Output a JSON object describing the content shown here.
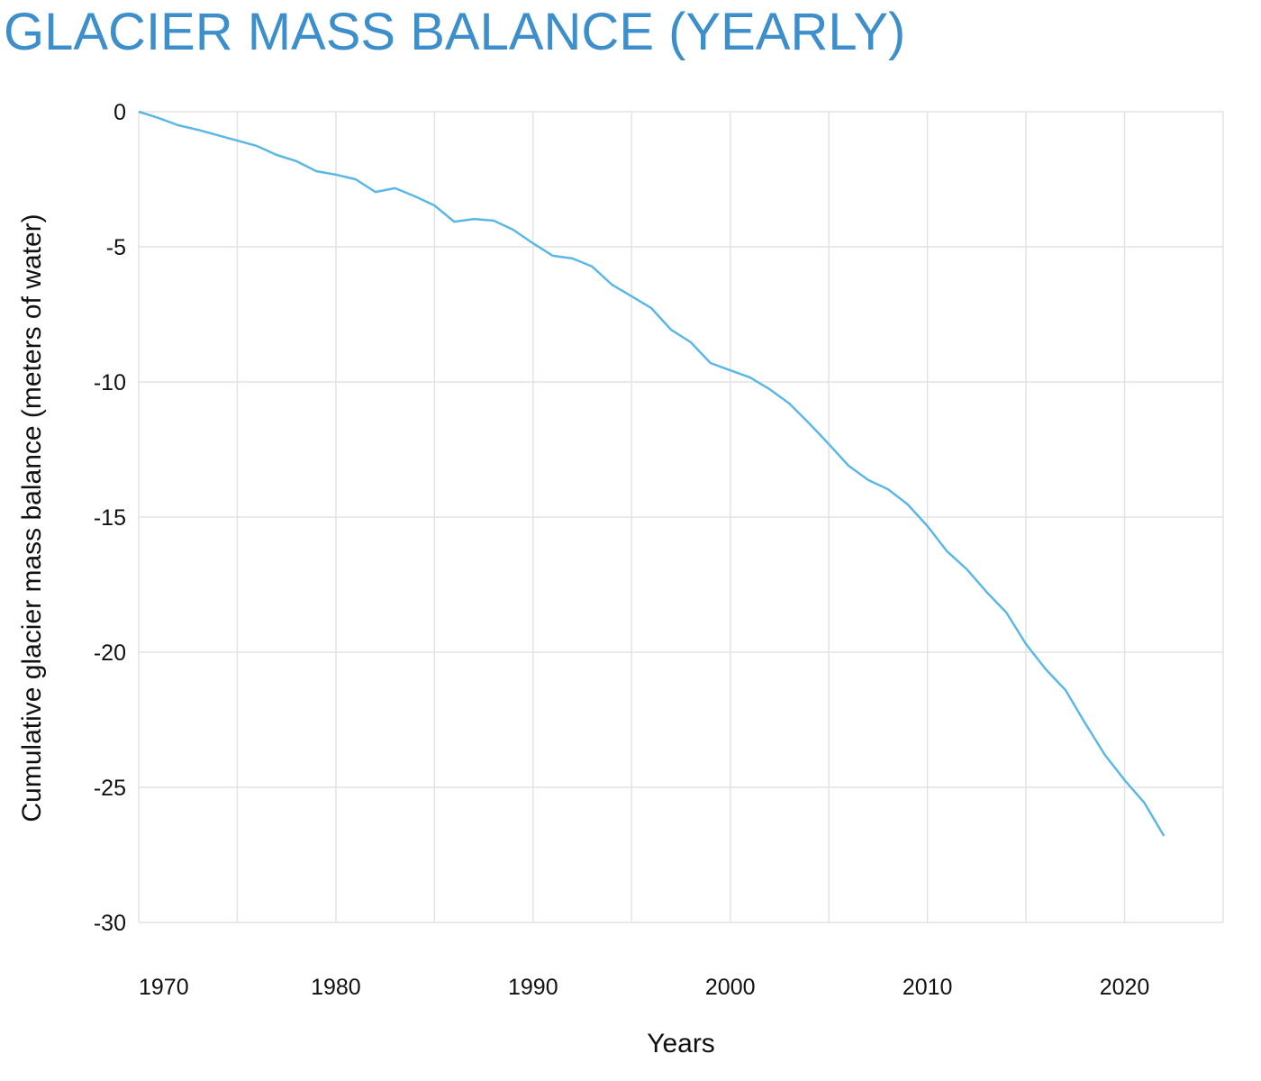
{
  "chart_data": {
    "type": "line",
    "title": "GLACIER MASS BALANCE (YEARLY)",
    "xlabel": "Years",
    "ylabel": "Cumulative glacier mass balance (meters of water)",
    "xlim": [
      1970,
      2025
    ],
    "ylim": [
      -30,
      0
    ],
    "xticks": [
      1970,
      1980,
      1990,
      2000,
      2010,
      2020
    ],
    "yticks": [
      0,
      -5,
      -10,
      -15,
      -20,
      -25,
      -30
    ],
    "grid": true,
    "line_color": "#5bb8e6",
    "title_color": "#3d8fcc",
    "x": [
      1970,
      1971,
      1972,
      1973,
      1974,
      1975,
      1976,
      1977,
      1978,
      1979,
      1980,
      1981,
      1982,
      1983,
      1984,
      1985,
      1986,
      1987,
      1988,
      1989,
      1990,
      1991,
      1992,
      1993,
      1994,
      1995,
      1996,
      1997,
      1998,
      1999,
      2000,
      2001,
      2002,
      2003,
      2004,
      2005,
      2006,
      2007,
      2008,
      2009,
      2010,
      2011,
      2012,
      2013,
      2014,
      2015,
      2016,
      2017,
      2018,
      2019,
      2020,
      2021,
      2022
    ],
    "values": [
      0,
      -0.23,
      -0.5,
      -0.67,
      -0.87,
      -1.07,
      -1.27,
      -1.6,
      -1.83,
      -2.2,
      -2.33,
      -2.5,
      -2.97,
      -2.83,
      -3.13,
      -3.47,
      -4.07,
      -3.97,
      -4.03,
      -4.37,
      -4.87,
      -5.33,
      -5.43,
      -5.73,
      -6.4,
      -6.83,
      -7.27,
      -8.07,
      -8.53,
      -9.3,
      -9.57,
      -9.83,
      -10.27,
      -10.8,
      -11.53,
      -12.3,
      -13.1,
      -13.63,
      -13.97,
      -14.53,
      -15.33,
      -16.27,
      -16.93,
      -17.77,
      -18.53,
      -19.7,
      -20.63,
      -21.4,
      -22.63,
      -23.8,
      -24.73,
      -25.57,
      -26.8
    ]
  }
}
